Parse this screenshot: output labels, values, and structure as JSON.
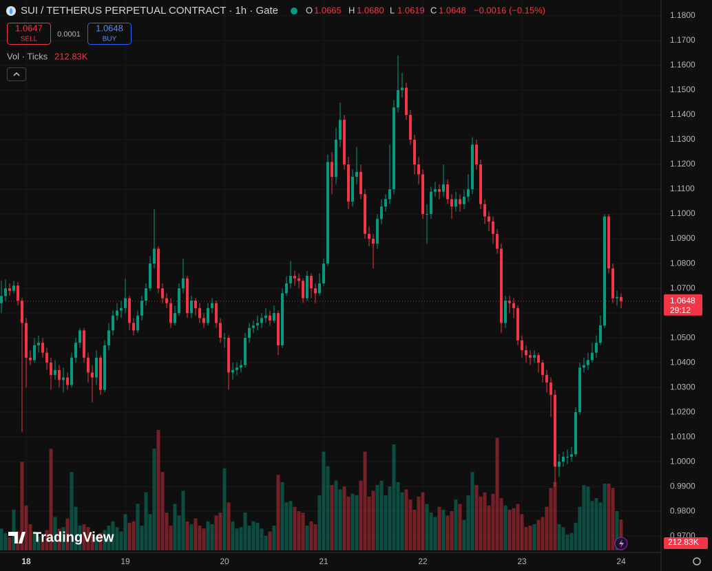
{
  "header": {
    "symbol": "SUI / TETHERUS PERPETUAL CONTRACT · 1h · Gate",
    "o_label": "O",
    "o": "1.0665",
    "h_label": "H",
    "h": "1.0680",
    "l_label": "L",
    "l": "1.0619",
    "c_label": "C",
    "c": "1.0648",
    "change": "−0.0016 (−0.15%)"
  },
  "trade": {
    "sell_price": "1.0647",
    "sell": "SELL",
    "spread": "0.0001",
    "buy_price": "1.0648",
    "buy": "BUY"
  },
  "volume_indicator": {
    "name": "Vol · Ticks",
    "value": "212.83K"
  },
  "brand": "TradingView",
  "chart_data": {
    "type": "candlestick",
    "up_color": "#089981",
    "down_color": "#f23645",
    "grid": true,
    "xlim": [
      -0.333,
      159.667
    ],
    "xticks": [
      {
        "value": 6,
        "label": "18"
      },
      {
        "value": 30,
        "label": "19"
      },
      {
        "value": 54,
        "label": "20"
      },
      {
        "value": 78,
        "label": "21"
      },
      {
        "value": 102,
        "label": "22"
      },
      {
        "value": 126,
        "label": "23"
      },
      {
        "value": 150,
        "label": "24"
      }
    ],
    "ylim": [
      0.9642,
      1.1864
    ],
    "yticks": [
      {
        "value": 0.97,
        "label": "0.9700"
      },
      {
        "value": 0.98,
        "label": "0.9800"
      },
      {
        "value": 0.99,
        "label": "0.9900"
      },
      {
        "value": 1.0,
        "label": "1.0000"
      },
      {
        "value": 1.01,
        "label": "1.0100"
      },
      {
        "value": 1.02,
        "label": "1.0200"
      },
      {
        "value": 1.03,
        "label": "1.0300"
      },
      {
        "value": 1.04,
        "label": "1.0400"
      },
      {
        "value": 1.05,
        "label": "1.0500"
      },
      {
        "value": 1.06,
        "label": "1.0600"
      },
      {
        "value": 1.07,
        "label": "1.0700"
      },
      {
        "value": 1.08,
        "label": "1.0800"
      },
      {
        "value": 1.09,
        "label": "1.0900"
      },
      {
        "value": 1.1,
        "label": "1.1000"
      },
      {
        "value": 1.11,
        "label": "1.1100"
      },
      {
        "value": 1.12,
        "label": "1.1200"
      },
      {
        "value": 1.13,
        "label": "1.1300"
      },
      {
        "value": 1.14,
        "label": "1.1400"
      },
      {
        "value": 1.15,
        "label": "1.1500"
      },
      {
        "value": 1.16,
        "label": "1.1600"
      },
      {
        "value": 1.17,
        "label": "1.1700"
      },
      {
        "value": 1.18,
        "label": "1.1800"
      }
    ],
    "last_price": {
      "value": 1.0648,
      "label": "1.0648"
    },
    "countdown": "29:12",
    "candles": [
      [
        1.064,
        1.073,
        1.06,
        1.0669
      ],
      [
        1.0669,
        1.0735,
        1.065,
        1.07
      ],
      [
        1.07,
        1.072,
        1.067,
        1.069
      ],
      [
        1.069,
        1.073,
        1.068,
        1.0711
      ],
      [
        1.0711,
        1.0725,
        1.063,
        1.065
      ],
      [
        1.065,
        1.066,
        1.012,
        1.056
      ],
      [
        1.056,
        1.058,
        1.03,
        1.042
      ],
      [
        1.042,
        1.045,
        1.039,
        1.041
      ],
      [
        1.041,
        1.05,
        1.04,
        1.047
      ],
      [
        1.047,
        1.051,
        1.044,
        1.048
      ],
      [
        1.048,
        1.05,
        1.042,
        1.044
      ],
      [
        1.044,
        1.046,
        1.037,
        1.04
      ],
      [
        1.04,
        1.042,
        1.029,
        1.035
      ],
      [
        1.035,
        1.041,
        1.033,
        1.037
      ],
      [
        1.037,
        1.039,
        1.03,
        1.033
      ],
      [
        1.033,
        1.038,
        1.028,
        1.034
      ],
      [
        1.034,
        1.036,
        1.029,
        1.031
      ],
      [
        1.031,
        1.044,
        1.03,
        1.042
      ],
      [
        1.042,
        1.05,
        1.04,
        1.048
      ],
      [
        1.048,
        1.054,
        1.046,
        1.053
      ],
      [
        1.053,
        1.054,
        1.04,
        1.042
      ],
      [
        1.042,
        1.044,
        1.032,
        1.036
      ],
      [
        1.036,
        1.039,
        1.024,
        1.034
      ],
      [
        1.034,
        1.045,
        1.031,
        1.042
      ],
      [
        1.042,
        1.043,
        1.027,
        1.029
      ],
      [
        1.029,
        1.049,
        1.028,
        1.047
      ],
      [
        1.047,
        1.056,
        1.045,
        1.053
      ],
      [
        1.053,
        1.061,
        1.051,
        1.059
      ],
      [
        1.059,
        1.064,
        1.057,
        1.061
      ],
      [
        1.061,
        1.065,
        1.058,
        1.062
      ],
      [
        1.062,
        1.074,
        1.06,
        1.066
      ],
      [
        1.066,
        1.067,
        1.053,
        1.056
      ],
      [
        1.056,
        1.058,
        1.051,
        1.053
      ],
      [
        1.053,
        1.061,
        1.052,
        1.059
      ],
      [
        1.059,
        1.067,
        1.057,
        1.065
      ],
      [
        1.065,
        1.072,
        1.063,
        1.07
      ],
      [
        1.07,
        1.083,
        1.069,
        1.08
      ],
      [
        1.08,
        1.102,
        1.078,
        1.086
      ],
      [
        1.086,
        1.087,
        1.068,
        1.07
      ],
      [
        1.07,
        1.072,
        1.064,
        1.066
      ],
      [
        1.066,
        1.068,
        1.062,
        1.064
      ],
      [
        1.064,
        1.066,
        1.054,
        1.056
      ],
      [
        1.056,
        1.063,
        1.055,
        1.06
      ],
      [
        1.06,
        1.072,
        1.059,
        1.07
      ],
      [
        1.07,
        1.082,
        1.068,
        1.074
      ],
      [
        1.074,
        1.075,
        1.058,
        1.06
      ],
      [
        1.06,
        1.067,
        1.058,
        1.065
      ],
      [
        1.065,
        1.066,
        1.059,
        1.062
      ],
      [
        1.062,
        1.064,
        1.056,
        1.058
      ],
      [
        1.058,
        1.06,
        1.054,
        1.056
      ],
      [
        1.056,
        1.064,
        1.055,
        1.062
      ],
      [
        1.062,
        1.066,
        1.06,
        1.064
      ],
      [
        1.064,
        1.065,
        1.054,
        1.056
      ],
      [
        1.056,
        1.058,
        1.048,
        1.05
      ],
      [
        1.05,
        1.052,
        1.046,
        1.05
      ],
      [
        1.05,
        1.051,
        1.029,
        1.036
      ],
      [
        1.036,
        1.04,
        1.033,
        1.037
      ],
      [
        1.037,
        1.04,
        1.035,
        1.038
      ],
      [
        1.038,
        1.041,
        1.036,
        1.039
      ],
      [
        1.039,
        1.052,
        1.038,
        1.05
      ],
      [
        1.05,
        1.056,
        1.048,
        1.054
      ],
      [
        1.054,
        1.057,
        1.052,
        1.055
      ],
      [
        1.055,
        1.059,
        1.053,
        1.056
      ],
      [
        1.056,
        1.06,
        1.054,
        1.058
      ],
      [
        1.058,
        1.062,
        1.056,
        1.059
      ],
      [
        1.059,
        1.061,
        1.055,
        1.057
      ],
      [
        1.057,
        1.063,
        1.056,
        1.06
      ],
      [
        1.06,
        1.061,
        1.043,
        1.047
      ],
      [
        1.047,
        1.07,
        1.046,
        1.068
      ],
      [
        1.068,
        1.075,
        1.067,
        1.072
      ],
      [
        1.072,
        1.081,
        1.07,
        1.075
      ],
      [
        1.075,
        1.077,
        1.071,
        1.074
      ],
      [
        1.074,
        1.076,
        1.07,
        1.073
      ],
      [
        1.073,
        1.074,
        1.064,
        1.066
      ],
      [
        1.066,
        1.077,
        1.065,
        1.075
      ],
      [
        1.075,
        1.076,
        1.066,
        1.07
      ],
      [
        1.07,
        1.072,
        1.064,
        1.068
      ],
      [
        1.068,
        1.076,
        1.067,
        1.072
      ],
      [
        1.072,
        1.082,
        1.071,
        1.08
      ],
      [
        1.08,
        1.124,
        1.079,
        1.121
      ],
      [
        1.121,
        1.125,
        1.108,
        1.115
      ],
      [
        1.115,
        1.135,
        1.112,
        1.13
      ],
      [
        1.13,
        1.145,
        1.127,
        1.138
      ],
      [
        1.138,
        1.14,
        1.118,
        1.12
      ],
      [
        1.12,
        1.123,
        1.102,
        1.105
      ],
      [
        1.105,
        1.118,
        1.103,
        1.115
      ],
      [
        1.115,
        1.127,
        1.112,
        1.117
      ],
      [
        1.117,
        1.12,
        1.106,
        1.108
      ],
      [
        1.108,
        1.11,
        1.09,
        1.092
      ],
      [
        1.092,
        1.095,
        1.087,
        1.09
      ],
      [
        1.09,
        1.092,
        1.078,
        1.088
      ],
      [
        1.088,
        1.1,
        1.086,
        1.098
      ],
      [
        1.098,
        1.106,
        1.096,
        1.103
      ],
      [
        1.103,
        1.108,
        1.101,
        1.106
      ],
      [
        1.106,
        1.128,
        1.104,
        1.11
      ],
      [
        1.11,
        1.146,
        1.108,
        1.143
      ],
      [
        1.143,
        1.164,
        1.141,
        1.15
      ],
      [
        1.15,
        1.157,
        1.147,
        1.151
      ],
      [
        1.151,
        1.153,
        1.138,
        1.14
      ],
      [
        1.14,
        1.142,
        1.128,
        1.13
      ],
      [
        1.13,
        1.132,
        1.116,
        1.12
      ],
      [
        1.12,
        1.123,
        1.112,
        1.116
      ],
      [
        1.116,
        1.118,
        1.098,
        1.1
      ],
      [
        1.1,
        1.104,
        1.088,
        1.1
      ],
      [
        1.1,
        1.111,
        1.098,
        1.109
      ],
      [
        1.109,
        1.113,
        1.107,
        1.11
      ],
      [
        1.11,
        1.112,
        1.106,
        1.109
      ],
      [
        1.109,
        1.12,
        1.107,
        1.112
      ],
      [
        1.112,
        1.114,
        1.104,
        1.106
      ],
      [
        1.106,
        1.108,
        1.098,
        1.103
      ],
      [
        1.103,
        1.109,
        1.101,
        1.106
      ],
      [
        1.106,
        1.108,
        1.101,
        1.104
      ],
      [
        1.104,
        1.11,
        1.102,
        1.107
      ],
      [
        1.107,
        1.116,
        1.105,
        1.11
      ],
      [
        1.11,
        1.131,
        1.108,
        1.128
      ],
      [
        1.128,
        1.13,
        1.118,
        1.12
      ],
      [
        1.12,
        1.122,
        1.102,
        1.104
      ],
      [
        1.104,
        1.106,
        1.096,
        1.099
      ],
      [
        1.099,
        1.101,
        1.093,
        1.097
      ],
      [
        1.097,
        1.099,
        1.088,
        1.092
      ],
      [
        1.092,
        1.094,
        1.084,
        1.086
      ],
      [
        1.086,
        1.088,
        1.052,
        1.056
      ],
      [
        1.056,
        1.067,
        1.054,
        1.065
      ],
      [
        1.065,
        1.067,
        1.06,
        1.064
      ],
      [
        1.064,
        1.066,
        1.058,
        1.062
      ],
      [
        1.062,
        1.063,
        1.047,
        1.049
      ],
      [
        1.049,
        1.051,
        1.042,
        1.045
      ],
      [
        1.045,
        1.047,
        1.04,
        1.043
      ],
      [
        1.043,
        1.045,
        1.039,
        1.042
      ],
      [
        1.042,
        1.045,
        1.04,
        1.043
      ],
      [
        1.043,
        1.044,
        1.036,
        1.04
      ],
      [
        1.04,
        1.041,
        1.032,
        1.035
      ],
      [
        1.035,
        1.037,
        1.028,
        1.032
      ],
      [
        1.032,
        1.034,
        1.018,
        1.027
      ],
      [
        1.027,
        1.029,
        0.99,
        0.998
      ],
      [
        0.998,
        1.003,
        0.994,
        1.0
      ],
      [
        1.0,
        1.004,
        0.998,
        1.002
      ],
      [
        1.002,
        1.005,
        0.999,
        1.002
      ],
      [
        1.002,
        1.006,
        1.0,
        1.003
      ],
      [
        1.003,
        1.022,
        1.002,
        1.02
      ],
      [
        1.02,
        1.04,
        1.019,
        1.038
      ],
      [
        1.038,
        1.042,
        1.036,
        1.039
      ],
      [
        1.039,
        1.044,
        1.037,
        1.041
      ],
      [
        1.041,
        1.048,
        1.04,
        1.044
      ],
      [
        1.044,
        1.051,
        1.042,
        1.048
      ],
      [
        1.048,
        1.059,
        1.047,
        1.055
      ],
      [
        1.055,
        1.1,
        1.054,
        1.099
      ],
      [
        1.099,
        1.1,
        1.076,
        1.078
      ],
      [
        1.078,
        1.08,
        1.064,
        1.066
      ],
      [
        1.066,
        1.069,
        1.063,
        1.0665
      ],
      [
        1.0665,
        1.068,
        1.0619,
        1.0648
      ]
    ],
    "vlim": [
      0,
      1000
    ],
    "volume": [
      150,
      120,
      90,
      280,
      130,
      610,
      310,
      180,
      130,
      95,
      60,
      140,
      700,
      230,
      150,
      160,
      220,
      540,
      300,
      170,
      180,
      160,
      110,
      90,
      120,
      140,
      170,
      200,
      160,
      130,
      250,
      190,
      200,
      320,
      170,
      400,
      250,
      700,
      830,
      540,
      260,
      170,
      320,
      240,
      410,
      200,
      180,
      220,
      170,
      150,
      200,
      180,
      240,
      260,
      565,
      330,
      200,
      150,
      160,
      260,
      170,
      200,
      190,
      150,
      100,
      130,
      170,
      520,
      470,
      330,
      340,
      300,
      270,
      260,
      170,
      200,
      180,
      380,
      680,
      580,
      450,
      480,
      420,
      440,
      370,
      390,
      380,
      480,
      680,
      370,
      410,
      450,
      480,
      380,
      440,
      730,
      470,
      400,
      420,
      350,
      280,
      370,
      400,
      320,
      260,
      230,
      300,
      280,
      240,
      270,
      350,
      320,
      210,
      380,
      540,
      450,
      370,
      400,
      310,
      390,
      775,
      360,
      310,
      280,
      290,
      320,
      250,
      160,
      170,
      180,
      210,
      230,
      300,
      430,
      470,
      180,
      160,
      110,
      120,
      190,
      300,
      450,
      440,
      340,
      360,
      330,
      460,
      460,
      430,
      270,
      212.83
    ],
    "volume_last_label": "212.83K"
  }
}
